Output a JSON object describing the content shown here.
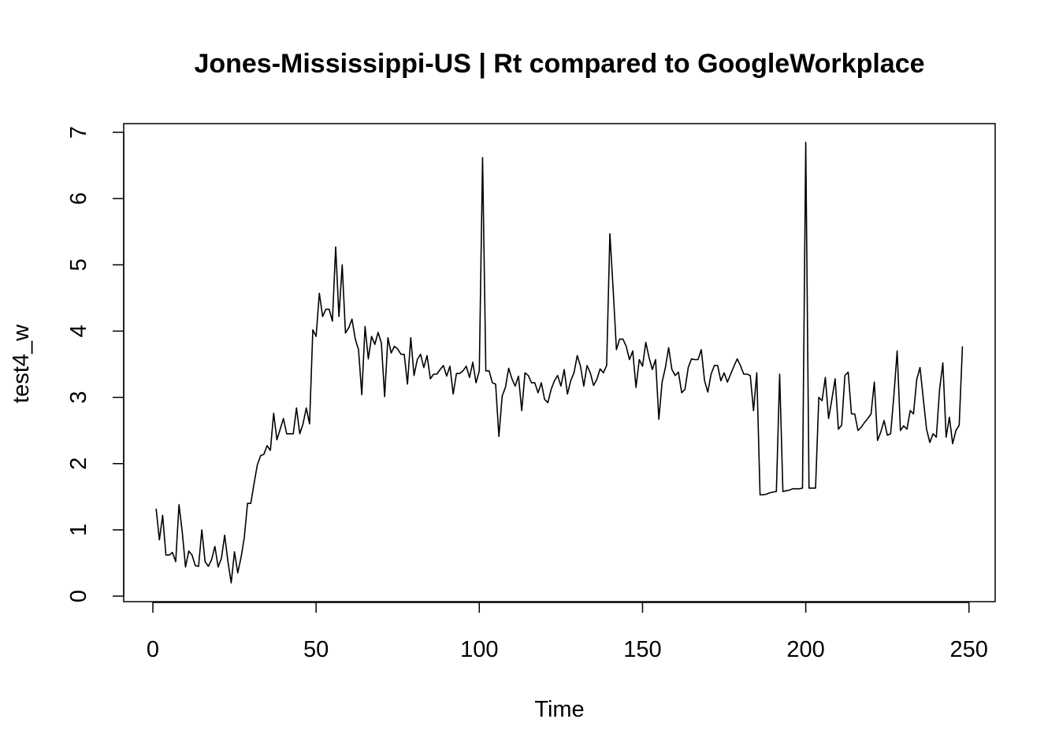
{
  "chart_data": {
    "type": "line",
    "title": "Jones-Mississippi-US | Rt compared to GoogleWorkplace",
    "xlabel": "Time",
    "ylabel": "test4_w",
    "xlim": [
      1,
      248
    ],
    "ylim": [
      0,
      7
    ],
    "x_ticks": [
      0,
      50,
      100,
      150,
      200,
      250
    ],
    "y_ticks": [
      0,
      1,
      2,
      3,
      4,
      5,
      6,
      7
    ],
    "grid": false,
    "legend": "none",
    "x_start": 1,
    "series": [
      {
        "values": [
          1.32,
          0.85,
          1.22,
          0.62,
          0.62,
          0.66,
          0.52,
          1.38,
          0.97,
          0.44,
          0.68,
          0.62,
          0.46,
          0.45,
          1.0,
          0.52,
          0.45,
          0.55,
          0.75,
          0.44,
          0.57,
          0.92,
          0.52,
          0.2,
          0.67,
          0.35,
          0.58,
          0.88,
          1.4,
          1.4,
          1.7,
          1.98,
          2.12,
          2.14,
          2.27,
          2.2,
          2.76,
          2.36,
          2.52,
          2.68,
          2.45,
          2.45,
          2.45,
          2.84,
          2.45,
          2.6,
          2.84,
          2.6,
          4.02,
          3.92,
          4.57,
          4.22,
          4.33,
          4.33,
          4.15,
          5.27,
          4.22,
          5.0,
          3.97,
          4.05,
          4.18,
          3.88,
          3.72,
          3.04,
          4.07,
          3.58,
          3.92,
          3.8,
          3.98,
          3.82,
          3.01,
          3.9,
          3.67,
          3.77,
          3.73,
          3.65,
          3.65,
          3.2,
          3.9,
          3.33,
          3.57,
          3.65,
          3.45,
          3.63,
          3.28,
          3.35,
          3.35,
          3.42,
          3.48,
          3.32,
          3.47,
          3.05,
          3.36,
          3.36,
          3.4,
          3.47,
          3.3,
          3.53,
          3.22,
          3.4,
          6.62,
          3.4,
          3.4,
          3.22,
          3.2,
          2.41,
          3.02,
          3.15,
          3.44,
          3.28,
          3.17,
          3.32,
          2.8,
          3.37,
          3.33,
          3.22,
          3.22,
          3.07,
          3.22,
          2.97,
          2.92,
          3.12,
          3.25,
          3.33,
          3.17,
          3.42,
          3.05,
          3.25,
          3.37,
          3.63,
          3.47,
          3.17,
          3.48,
          3.37,
          3.18,
          3.27,
          3.43,
          3.37,
          3.48,
          5.47,
          4.63,
          3.72,
          3.88,
          3.88,
          3.77,
          3.57,
          3.7,
          3.15,
          3.57,
          3.47,
          3.83,
          3.6,
          3.42,
          3.57,
          2.67,
          3.23,
          3.45,
          3.75,
          3.42,
          3.33,
          3.38,
          3.07,
          3.12,
          3.45,
          3.58,
          3.57,
          3.57,
          3.72,
          3.25,
          3.08,
          3.35,
          3.48,
          3.48,
          3.25,
          3.37,
          3.23,
          3.35,
          3.47,
          3.58,
          3.48,
          3.35,
          3.35,
          3.33,
          2.8,
          3.37,
          1.53,
          1.53,
          1.54,
          1.56,
          1.57,
          1.58,
          3.35,
          1.58,
          1.59,
          1.6,
          1.62,
          1.62,
          1.62,
          1.63,
          6.85,
          1.63,
          1.63,
          1.63,
          3.0,
          2.95,
          3.3,
          2.68,
          2.97,
          3.28,
          2.52,
          2.58,
          3.33,
          3.38,
          2.75,
          2.75,
          2.5,
          2.55,
          2.62,
          2.68,
          2.75,
          3.23,
          2.35,
          2.48,
          2.65,
          2.43,
          2.45,
          3.03,
          3.7,
          2.5,
          2.57,
          2.52,
          2.8,
          2.75,
          3.27,
          3.45,
          2.98,
          2.52,
          2.32,
          2.45,
          2.4,
          3.12,
          3.52,
          2.4,
          2.7,
          2.3,
          2.5,
          2.58,
          3.77
        ]
      }
    ]
  }
}
